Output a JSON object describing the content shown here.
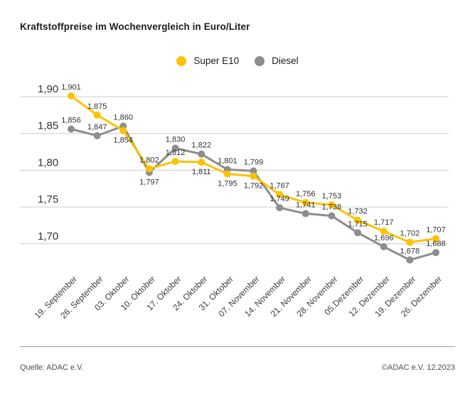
{
  "title": "Kraftstoffpreise im Wochenvergleich in Euro/Liter",
  "footer": {
    "source": "Quelle: ADAC e.V.",
    "copyright": "©ADAC e.V. 12.2023"
  },
  "colors": {
    "super_e10": "#fcc200",
    "diesel": "#8d8d8d",
    "gridline": "#cccccc",
    "label_text": "#323232",
    "axis_text": "#3c3c3c",
    "title_text": "#1d1d1b"
  },
  "chart_data": {
    "type": "line",
    "title": "Kraftstoffpreise im Wochenvergleich in Euro/Liter",
    "unit": "Euro/Liter",
    "grid": true,
    "legend_position": "top",
    "categories": [
      "19. September",
      "26. September",
      "03. Oktober",
      "10. Oktober",
      "17. Oktober",
      "24. Oktober",
      "31. Oktober",
      "07. November",
      "14. November",
      "21. November",
      "28. November",
      "05.Dezember",
      "12. Dezember",
      "19. Dezember",
      "26. Dezember"
    ],
    "y_axis": {
      "ticks": [
        "1,90",
        "1,85",
        "1,80",
        "1,75",
        "1,70"
      ],
      "tick_values": [
        1.9,
        1.85,
        1.8,
        1.75,
        1.7
      ],
      "range": [
        1.66,
        1.92
      ]
    },
    "series": [
      {
        "name": "Super E10",
        "color": "#fcc200",
        "values": [
          1.901,
          1.875,
          1.854,
          1.802,
          1.812,
          1.811,
          1.795,
          1.792,
          1.767,
          1.756,
          1.753,
          1.732,
          1.717,
          1.702,
          1.707
        ],
        "labels": [
          "1,901",
          "1,875",
          "1,854",
          "1,802",
          "1,812",
          "1,811",
          "1,795",
          "1,792",
          "1,767",
          "1,756",
          "1,753",
          "1,732",
          "1,717",
          "1,702",
          "1,707"
        ],
        "label_pos": [
          "above",
          "above",
          "below",
          "above",
          "above",
          "below",
          "below",
          "below",
          "above",
          "above",
          "above",
          "above",
          "above",
          "above",
          "above"
        ]
      },
      {
        "name": "Diesel",
        "color": "#8d8d8d",
        "values": [
          1.856,
          1.847,
          1.86,
          1.797,
          1.83,
          1.822,
          1.801,
          1.799,
          1.749,
          1.741,
          1.738,
          1.715,
          1.696,
          1.678,
          1.688
        ],
        "labels": [
          "1,856",
          "1,847",
          "1,860",
          "1,797",
          "1,830",
          "1,822",
          "1,801",
          "1,799",
          "1,749",
          "1,741",
          "1,738",
          "1,715",
          "1,696",
          "1,678",
          "1,688"
        ],
        "label_pos": [
          "above",
          "above",
          "above",
          "below",
          "above",
          "above",
          "above",
          "above",
          "above",
          "above",
          "above",
          "above",
          "above",
          "above",
          "above"
        ]
      }
    ]
  }
}
